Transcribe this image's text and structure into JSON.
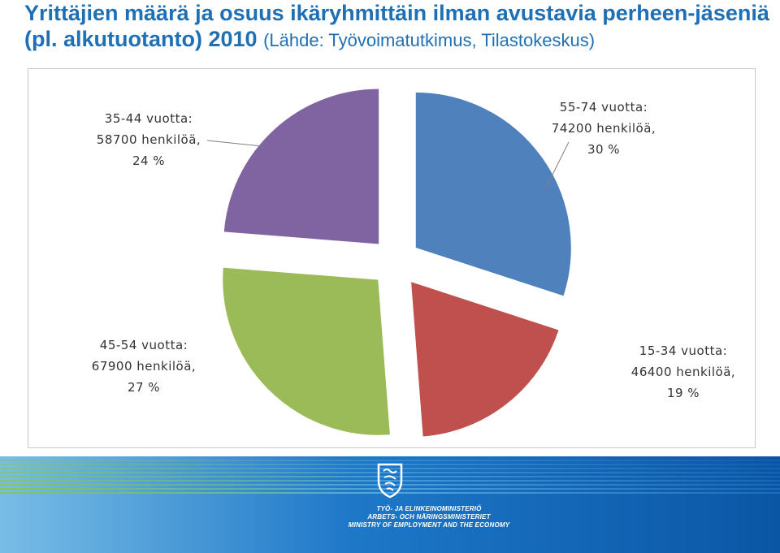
{
  "title": {
    "main": "Yrittäjien määrä ja osuus ikäryhmittäin ilman avustavia perheen-jäseniä (pl. alkutuotanto) 2010",
    "source": "(Lähde: Työvoimatutkimus, Tilastokeskus)"
  },
  "chart_data": {
    "type": "pie",
    "title": "",
    "slices": [
      {
        "label": "55-74 vuotta:",
        "count": "74200 henkilöä,",
        "percent_label": "30 %",
        "value": 74200,
        "percent": 30,
        "color": "#4f81bd"
      },
      {
        "label": "15-34 vuotta:",
        "count": "46400 henkilöä,",
        "percent_label": "19 %",
        "value": 46400,
        "percent": 19,
        "color": "#c0504d"
      },
      {
        "label": "45-54 vuotta:",
        "count": "67900 henkilöä,",
        "percent_label": "27 %",
        "value": 67900,
        "percent": 27,
        "color": "#9bbb59"
      },
      {
        "label": "35-44 vuotta:",
        "count": "58700 henkilöä,",
        "percent_label": "24 %",
        "value": 58700,
        "percent": 24,
        "color": "#8064a2"
      }
    ],
    "legend": "none",
    "exploded": true
  },
  "footer": {
    "ministry_fi": "TYÖ- JA ELINKEINOMINISTERIÖ",
    "ministry_sv": "ARBETS- OCH NÄRINGSMINISTERIET",
    "ministry_en": "MINISTRY OF EMPLOYMENT AND THE ECONOMY",
    "crest_icon": "finnish-lion-crest-icon",
    "colors": {
      "band_dark": "#0a56a5",
      "band_light": "#6fb3e0",
      "stripe_green": "#8cc63f"
    }
  }
}
